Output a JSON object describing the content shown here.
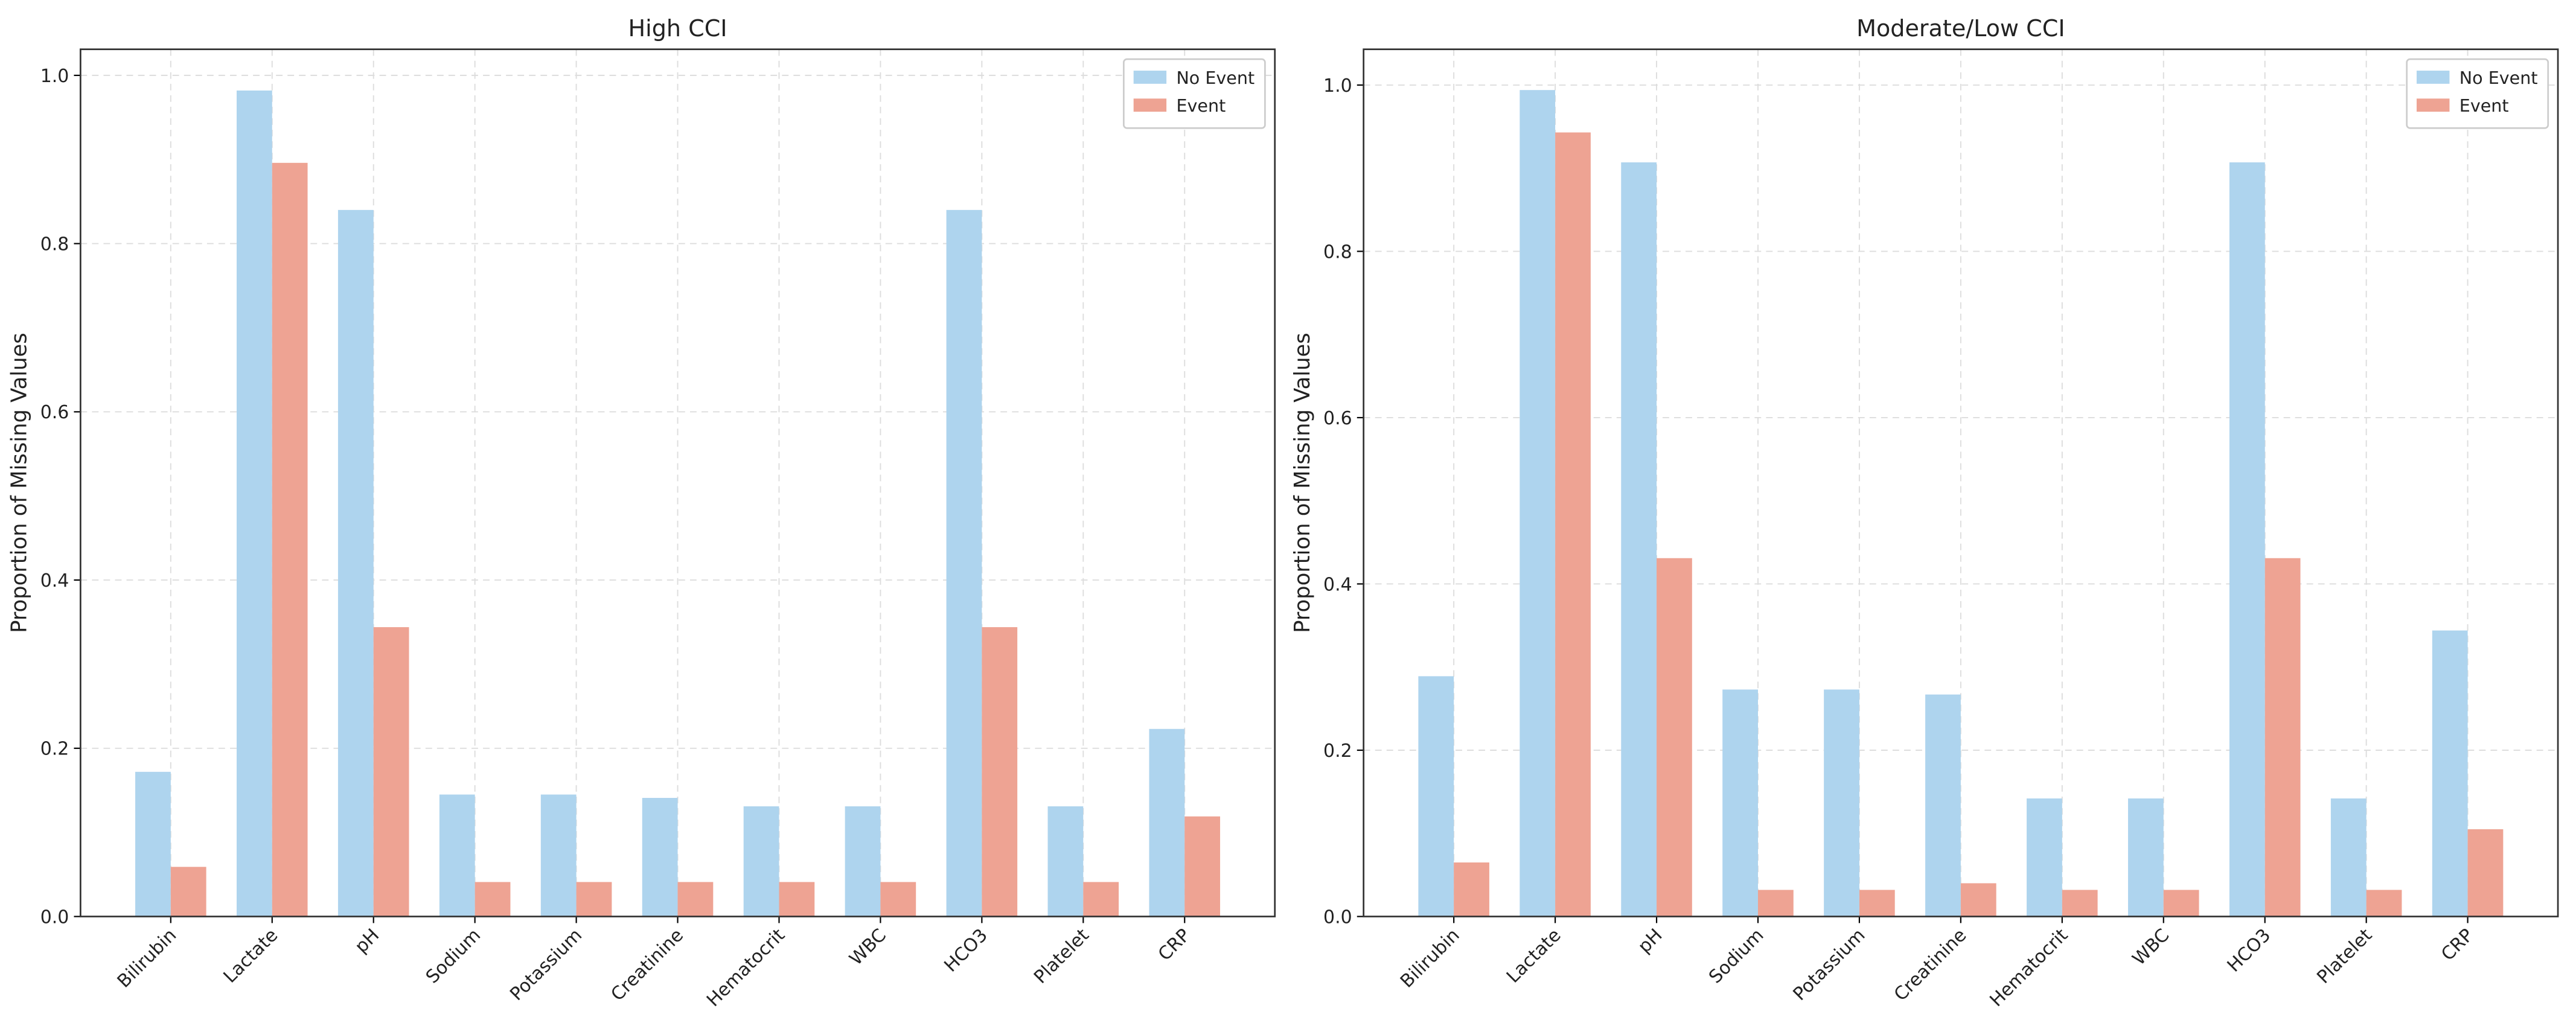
{
  "chart_data": [
    {
      "type": "bar",
      "title": "High CCI",
      "y_label": "Proportion of Missing Values",
      "categories": [
        "Bilirubin",
        "Lactate",
        "pH",
        "Sodium",
        "Potassium",
        "Creatinine",
        "Hematocrit",
        "WBC",
        "HCO3",
        "Platelet",
        "CRP"
      ],
      "series": [
        {
          "name": "No Event",
          "color": "#aed4ee",
          "values": [
            0.172,
            0.982,
            0.84,
            0.145,
            0.145,
            0.141,
            0.131,
            0.131,
            0.84,
            0.131,
            0.223
          ]
        },
        {
          "name": "Event",
          "color": "#eea393",
          "values": [
            0.059,
            0.896,
            0.344,
            0.041,
            0.041,
            0.041,
            0.041,
            0.041,
            0.344,
            0.041,
            0.119
          ]
        }
      ],
      "ylim": [
        0,
        1.031
      ],
      "yticks": [
        {
          "value": 0,
          "label": "0.0"
        },
        {
          "value": 0.2,
          "label": "0.2"
        },
        {
          "value": 0.4,
          "label": "0.4"
        },
        {
          "value": 0.6,
          "label": "0.6"
        },
        {
          "value": 0.8,
          "label": "0.8"
        },
        {
          "value": 1,
          "label": "1.0"
        }
      ],
      "grid": true,
      "legend": "upper right"
    },
    {
      "type": "bar",
      "title": "Moderate/Low CCI",
      "y_label": "Proportion of Missing Values",
      "categories": [
        "Bilirubin",
        "Lactate",
        "pH",
        "Sodium",
        "Potassium",
        "Creatinine",
        "Hematocrit",
        "WBC",
        "HCO3",
        "Platelet",
        "CRP"
      ],
      "series": [
        {
          "name": "No Event",
          "color": "#aed4ee",
          "values": [
            0.289,
            0.994,
            0.907,
            0.273,
            0.273,
            0.267,
            0.142,
            0.142,
            0.907,
            0.142,
            0.344
          ]
        },
        {
          "name": "Event",
          "color": "#eea393",
          "values": [
            0.065,
            0.943,
            0.431,
            0.032,
            0.032,
            0.04,
            0.032,
            0.032,
            0.431,
            0.032,
            0.105
          ]
        }
      ],
      "ylim": [
        0,
        1.043
      ],
      "yticks": [
        {
          "value": 0,
          "label": "0.0"
        },
        {
          "value": 0.2,
          "label": "0.2"
        },
        {
          "value": 0.4,
          "label": "0.4"
        },
        {
          "value": 0.6,
          "label": "0.6"
        },
        {
          "value": 0.8,
          "label": "0.8"
        },
        {
          "value": 1,
          "label": "1.0"
        }
      ],
      "grid": true,
      "legend": "upper right"
    }
  ]
}
